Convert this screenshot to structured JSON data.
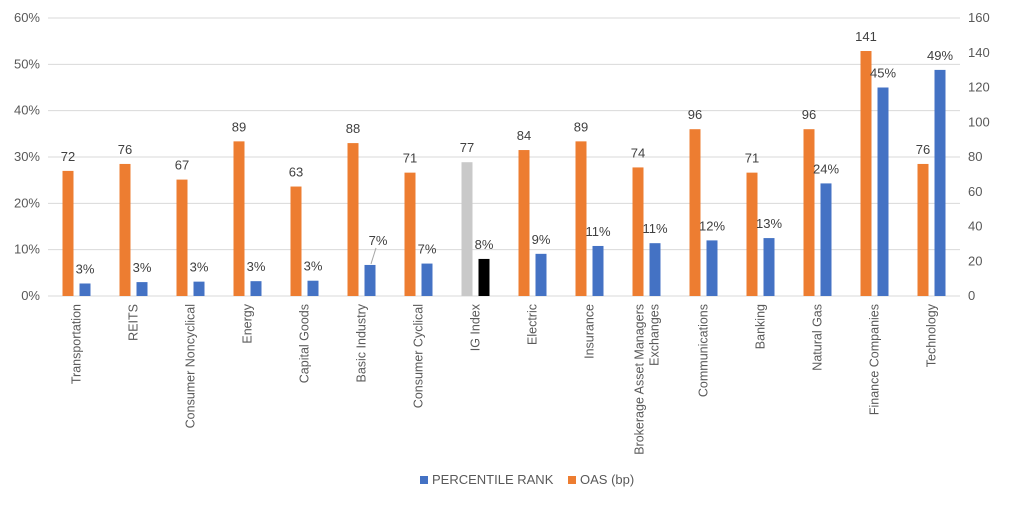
{
  "chart_data": {
    "type": "bar",
    "title": "",
    "xlabel": "",
    "ylabel": "",
    "categories": [
      [
        "Transportation"
      ],
      [
        "REITS"
      ],
      [
        "Consumer Noncyclical"
      ],
      [
        "Energy"
      ],
      [
        "Capital Goods"
      ],
      [
        "Basic Industry"
      ],
      [
        "Consumer Cyclical"
      ],
      [
        "IG Index"
      ],
      [
        "Electric"
      ],
      [
        "Insurance"
      ],
      [
        "Brokerage Asset Managers",
        "Exchanges"
      ],
      [
        "Communications"
      ],
      [
        "Banking"
      ],
      [
        "Natural Gas"
      ],
      [
        "Finance Companies"
      ],
      [
        "Technology"
      ]
    ],
    "left_axis": {
      "min": 0,
      "max": 60,
      "step": 10,
      "ticks": [
        "0%",
        "10%",
        "20%",
        "30%",
        "40%",
        "50%",
        "60%"
      ]
    },
    "right_axis": {
      "min": 0,
      "max": 160,
      "step": 20,
      "ticks": [
        "0",
        "20",
        "40",
        "60",
        "80",
        "100",
        "120",
        "140",
        "160"
      ]
    },
    "grid": true,
    "legend_position": "bottom-center",
    "highlight_index": 7,
    "highlight_colors": {
      "oas": "#c9c9c9",
      "percentile": "#000000"
    },
    "series": [
      {
        "name": "OAS (bp)",
        "axis": "right",
        "color": "#ed7d31",
        "values": [
          72,
          76,
          67,
          89,
          63,
          88,
          71,
          77,
          84,
          89,
          74,
          96,
          71,
          96,
          141,
          76
        ],
        "labels": [
          "72",
          "76",
          "67",
          "89",
          "63",
          "88",
          "71",
          "77",
          "84",
          "89",
          "74",
          "96",
          "71",
          "96",
          "141",
          "76"
        ]
      },
      {
        "name": "PERCENTILE RANK",
        "axis": "left",
        "color": "#4472c4",
        "values": [
          2.7,
          3.0,
          3.1,
          3.2,
          3.3,
          6.7,
          7.0,
          8.0,
          9.1,
          10.8,
          11.4,
          12.0,
          12.5,
          24.3,
          45.0,
          48.8
        ],
        "labels": [
          "3%",
          "3%",
          "3%",
          "3%",
          "3%",
          "7%",
          "7%",
          "8%",
          "9%",
          "11%",
          "11%",
          "12%",
          "13%",
          "24%",
          "45%",
          "49%"
        ]
      }
    ],
    "legend": [
      {
        "name": "PERCENTILE RANK",
        "color": "#4472c4"
      },
      {
        "name": "OAS (bp)",
        "color": "#ed7d31"
      }
    ]
  }
}
